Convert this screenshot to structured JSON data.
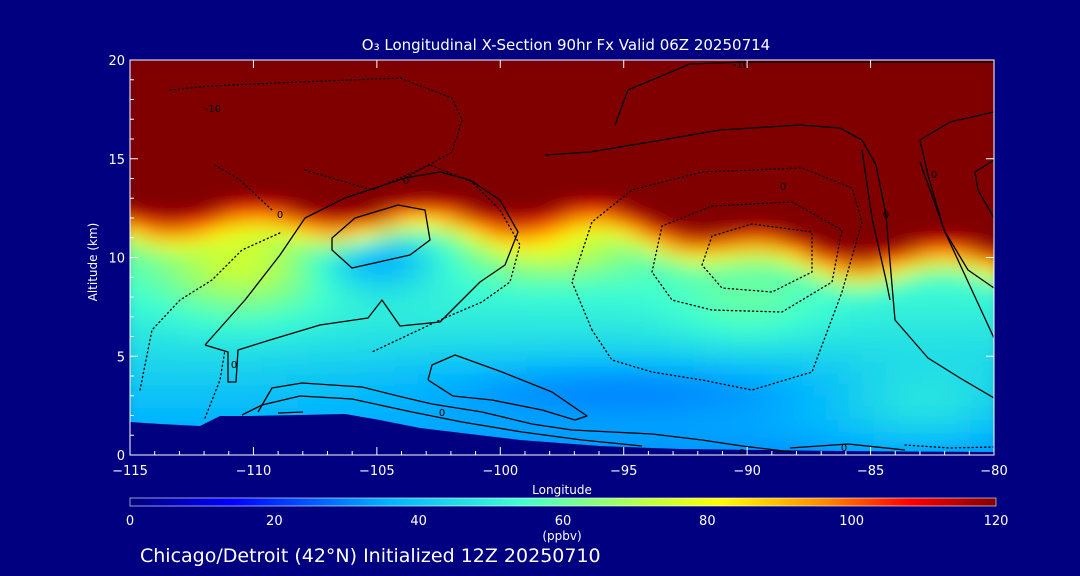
{
  "chart_data": {
    "type": "heatmap",
    "title": "O₃ Longitudinal X-Section 90hr  Fx Valid 06Z 20250714",
    "xlabel": "Longitude",
    "ylabel": "Altitude (km)",
    "xlim": [
      -115,
      -80
    ],
    "ylim": [
      0,
      20
    ],
    "x_ticks": [
      -115,
      -110,
      -105,
      -100,
      -95,
      -90,
      -85,
      -80
    ],
    "x_tick_labels": [
      "−115",
      "−110",
      "−105",
      "−100",
      "−95",
      "−90",
      "−85",
      "−80"
    ],
    "y_ticks": [
      0,
      5,
      10,
      15,
      20
    ],
    "y_tick_labels": [
      "0",
      "5",
      "10",
      "15",
      "20"
    ],
    "colorbar": {
      "label": "(ppbv)",
      "range": [
        0,
        120
      ],
      "ticks": [
        0,
        20,
        40,
        60,
        80,
        100,
        120
      ],
      "tick_labels": [
        "0",
        "20",
        "40",
        "60",
        "80",
        "100",
        "120"
      ]
    },
    "contour_labels": [
      "0",
      "-10",
      "0",
      "-10",
      "0",
      "0",
      "0",
      "0",
      "0",
      "0",
      "0"
    ],
    "footer": "Chicago/Detroit (42°N) Initialized 12Z 20250710"
  }
}
